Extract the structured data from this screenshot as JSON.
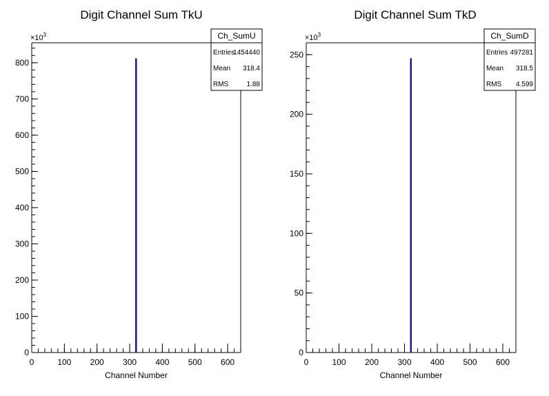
{
  "chart_data": [
    {
      "type": "bar",
      "histogram_name": "Ch_SumU",
      "title": "Digit Channel Sum TkU",
      "xlabel": "Channel Number",
      "ylabel": "",
      "y_multiplier": "×10",
      "y_exponent": "3",
      "xlim": [
        0,
        640
      ],
      "ylim": [
        0,
        855
      ],
      "x_ticks": [
        "0",
        "100",
        "200",
        "300",
        "400",
        "500",
        "600"
      ],
      "y_ticks": [
        "0",
        "100",
        "200",
        "300",
        "400",
        "500",
        "600",
        "700",
        "800"
      ],
      "x": [
        319
      ],
      "values": [
        812
      ],
      "bar_color": "#1a1a6e",
      "stats": {
        "entries_label": "Entries",
        "entries": "1454440",
        "mean_label": "Mean",
        "mean": "318.4",
        "rms_label": "RMS",
        "rms": "1.88"
      }
    },
    {
      "type": "bar",
      "histogram_name": "Ch_SumD",
      "title": "Digit Channel Sum TkD",
      "xlabel": "Channel Number",
      "ylabel": "",
      "y_multiplier": "×10",
      "y_exponent": "3",
      "xlim": [
        0,
        640
      ],
      "ylim": [
        0,
        260
      ],
      "x_ticks": [
        "0",
        "100",
        "200",
        "300",
        "400",
        "500",
        "600"
      ],
      "y_ticks": [
        "0",
        "50",
        "100",
        "150",
        "200",
        "250"
      ],
      "x": [
        319
      ],
      "values": [
        247
      ],
      "bar_color": "#1a1a6e",
      "stats": {
        "entries_label": "Entries",
        "entries": "497281",
        "mean_label": "Mean",
        "mean": "318.5",
        "rms_label": "RMS",
        "rms": "4.599"
      }
    }
  ]
}
